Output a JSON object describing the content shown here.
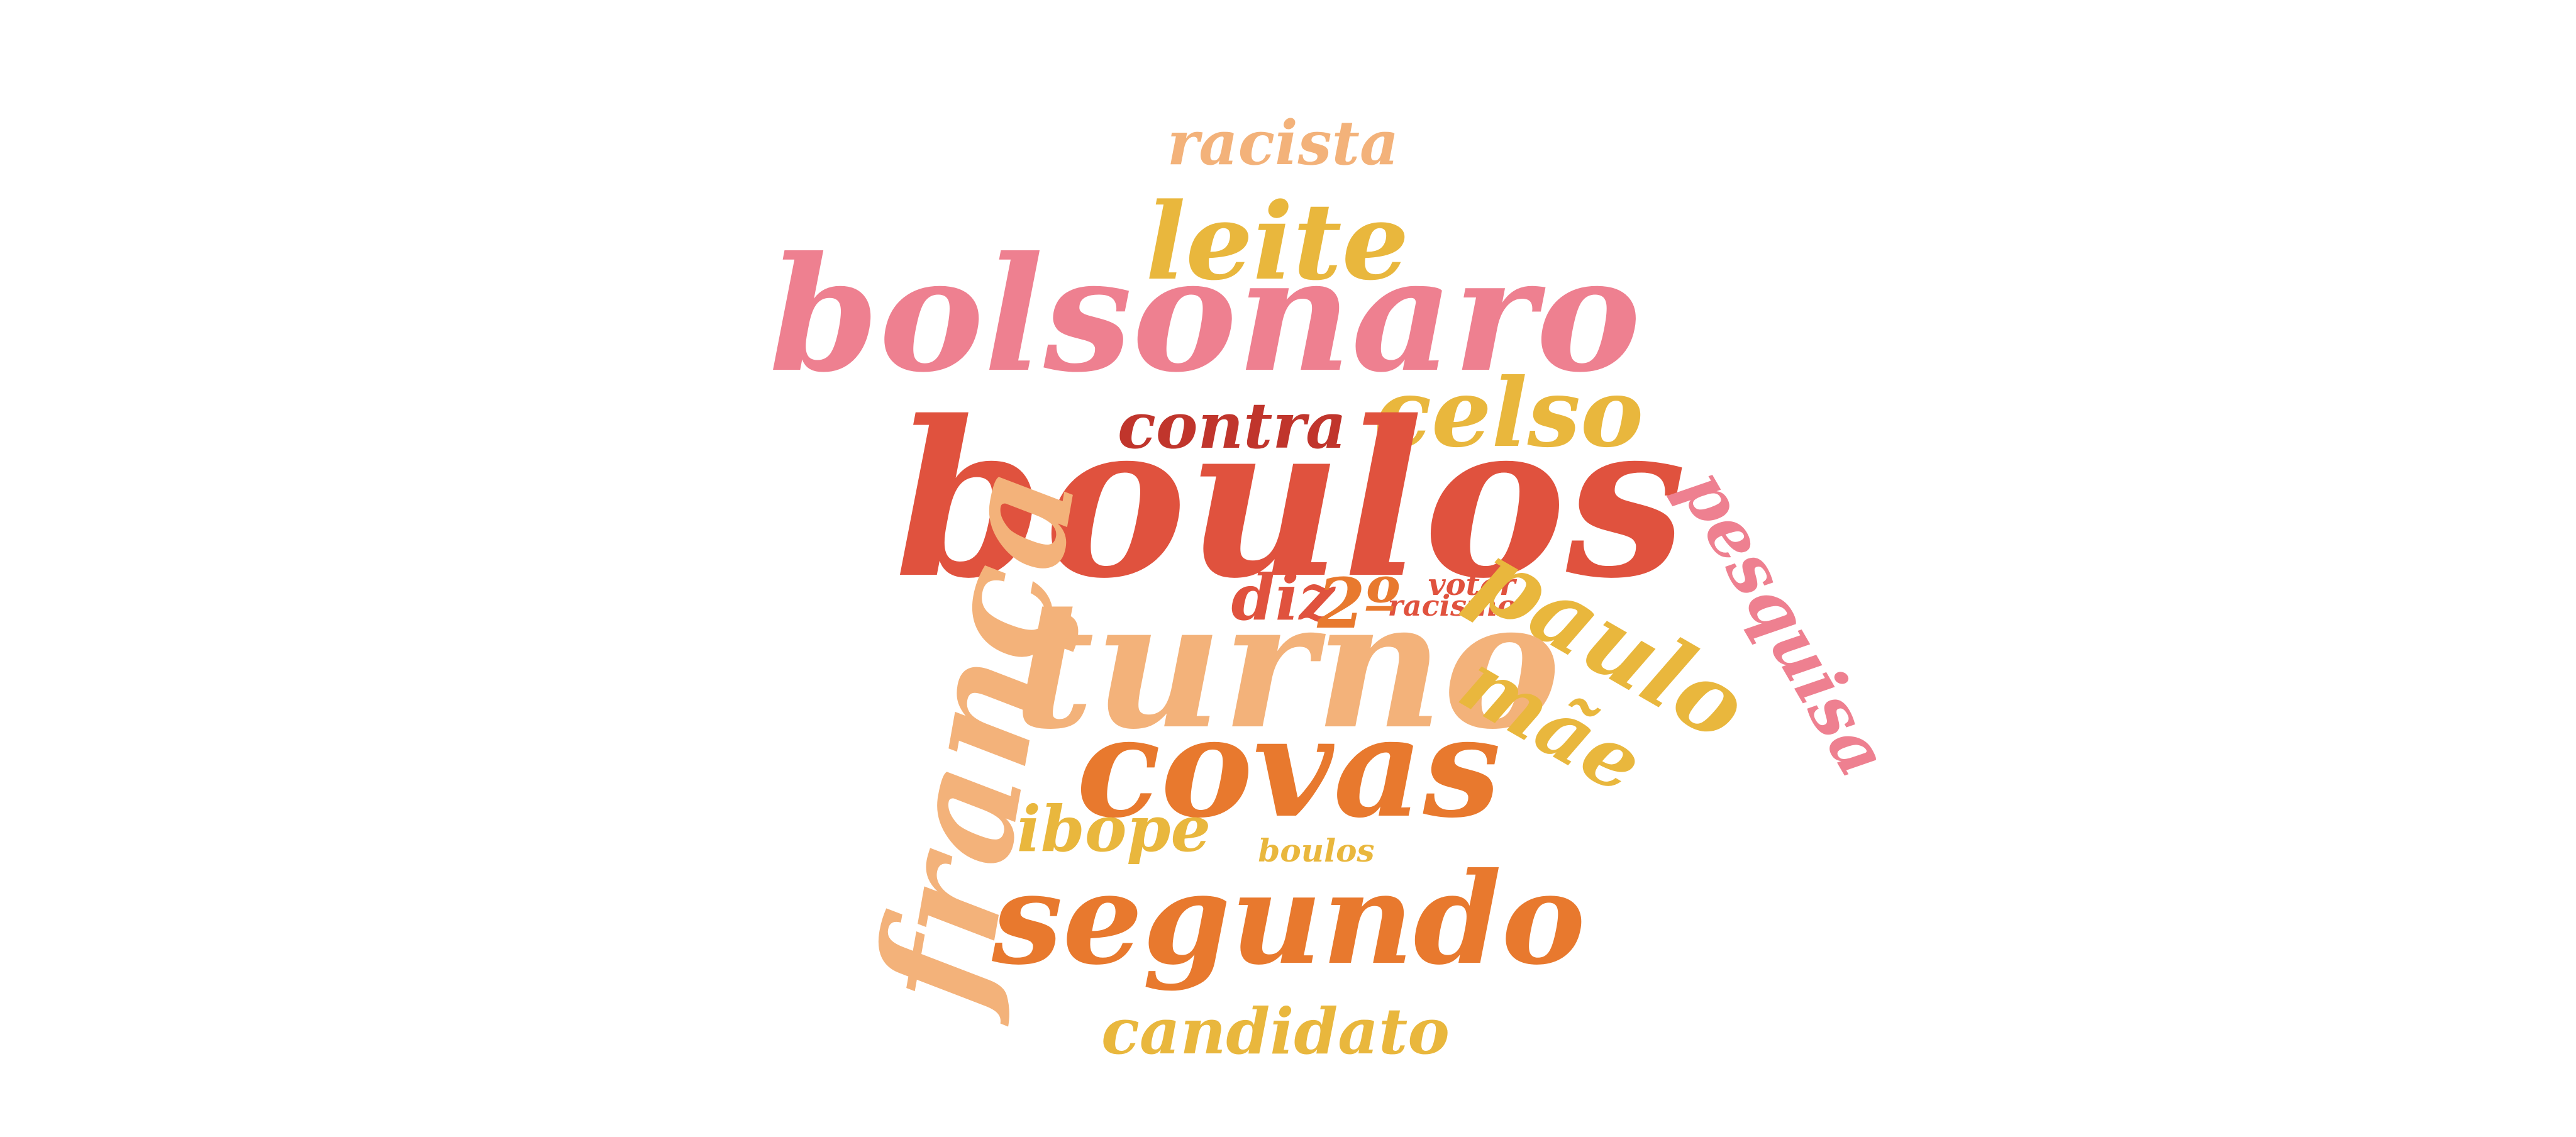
{
  "colors": {
    "background": "#ffffff",
    "red": "#e0523e",
    "dark_red": "#c0352c",
    "orange": "#e8792e",
    "light_orange": "#f3b27a",
    "yellow": "#e9b73d",
    "pink": "#ee8090"
  },
  "words": [
    {
      "text": "racista",
      "color": "#f3b27a"
    },
    {
      "text": "leite",
      "color": "#e9b73d"
    },
    {
      "text": "bolsonaro",
      "color": "#ee8090"
    },
    {
      "text": "contra",
      "color": "#c0352c"
    },
    {
      "text": "celso",
      "color": "#e9b73d"
    },
    {
      "text": "boulos",
      "color": "#e0523e"
    },
    {
      "text": "pesquisa",
      "color": "#ee8090"
    },
    {
      "text": "votar",
      "color": "#e0523e"
    },
    {
      "text": "racismo",
      "color": "#e0523e"
    },
    {
      "text": "diz",
      "color": "#e0523e"
    },
    {
      "text": "2º",
      "color": "#e8792e"
    },
    {
      "text": "paulo",
      "color": "#e9b73d"
    },
    {
      "text": "turno",
      "color": "#f3b27a"
    },
    {
      "text": "mãe",
      "color": "#e9b73d"
    },
    {
      "text": "frança",
      "color": "#f3b27a"
    },
    {
      "text": "covas",
      "color": "#e8792e"
    },
    {
      "text": "ibope",
      "color": "#e9b73d"
    },
    {
      "text": "boulos",
      "color": "#e9b73d"
    },
    {
      "text": "segundo",
      "color": "#e8792e"
    },
    {
      "text": "candidato",
      "color": "#e9b73d"
    }
  ]
}
